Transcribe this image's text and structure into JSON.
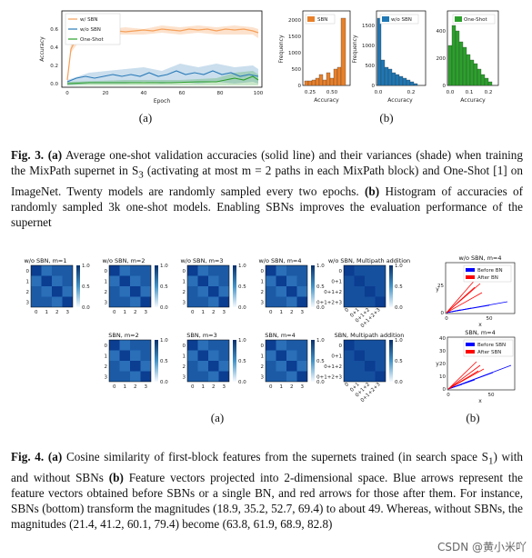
{
  "fig3": {
    "line_chart": {
      "xlabel": "Epoch",
      "ylabel": "Accuracy",
      "legend": [
        "w/ SBN",
        "w/o SBN",
        "One-Shot"
      ],
      "xticks": [
        "0",
        "20",
        "40",
        "60",
        "80",
        "100"
      ],
      "yticks": [
        "0.0",
        "0.2",
        "0.4",
        "0.6"
      ]
    },
    "hists": [
      {
        "legend": "SBN",
        "ylabel": "Frequency",
        "xlabel": "Accuracy",
        "xticks": [
          "0.25",
          "0.50"
        ],
        "yticks": [
          "0",
          "500",
          "1000",
          "1500",
          "2000"
        ]
      },
      {
        "legend": "w/o SBN",
        "ylabel": "Frequency",
        "xlabel": "Accuracy",
        "xticks": [
          "0.0",
          "0.2"
        ],
        "yticks": [
          "0",
          "500",
          "1000",
          "1500"
        ]
      },
      {
        "legend": "One-Shot",
        "ylabel": "",
        "xlabel": "Accuracy",
        "xticks": [
          "0.0",
          "0.1",
          "0.2"
        ],
        "yticks": [
          "0",
          "200",
          "400"
        ]
      }
    ],
    "sub_a": "(a)",
    "sub_b": "(b)",
    "caption_label": "Fig. 3.",
    "caption_a": "(a)",
    "caption_text1": " Average one-shot validation accuracies (solid line) and their variances (shade) when training the MixPath supernet in S",
    "caption_sub3": "3",
    "caption_text2": " (activating at most m = 2 paths in each MixPath block) and One-Shot [1] on ImageNet. Twenty models are randomly sampled every two epochs. ",
    "caption_b": "(b)",
    "caption_text3": " Histogram of accuracies of randomly sampled 3k one-shot models. Enabling SBNs improves the evaluation performance of the supernet"
  },
  "fig4": {
    "heatmaps_top": [
      {
        "title": "w/o SBN, m=1"
      },
      {
        "title": "w/o SBN, m=2"
      },
      {
        "title": "w/o SBN, m=3"
      },
      {
        "title": "w/o SBN, m=4"
      },
      {
        "title": "w/o SBN, Multipath addition"
      }
    ],
    "heatmaps_bottom": [
      {
        "title": "SBN, m=2"
      },
      {
        "title": "SBN, m=3"
      },
      {
        "title": "SBN, m=4"
      },
      {
        "title": "SBN, Multipath addition"
      }
    ],
    "idx_ticks": [
      "0",
      "1",
      "2",
      "3"
    ],
    "add_ticks": [
      "0",
      "0+1",
      "0+1+2",
      "0+1+2+3"
    ],
    "colorbar": [
      "1.0",
      "0.5",
      "0.0"
    ],
    "vec_top": {
      "title": "w/o SBN, m=4",
      "legend": [
        "Before BN",
        "After BN"
      ],
      "yticks": [
        "0",
        "25"
      ],
      "xticks": [
        "0",
        "50"
      ]
    },
    "vec_bottom": {
      "title": "SBN, m=4",
      "legend": [
        "Before SBN",
        "After SBN"
      ],
      "yticks": [
        "0",
        "10",
        "20",
        "30",
        "40"
      ],
      "xticks": [
        "0",
        "50"
      ]
    },
    "axis_x": "x",
    "axis_y": "y",
    "sub_a": "(a)",
    "sub_b": "(b)",
    "caption_label": "Fig. 4.",
    "caption_a": "(a)",
    "caption_text1": " Cosine similarity of first-block features from the supernets trained (in search space S",
    "caption_sub1": "1",
    "caption_text2": ") with and without SBNs ",
    "caption_b": "(b)",
    "caption_text3": " Feature vectors projected into 2-dimensional space. Blue arrows represent the feature vectors obtained before SBNs or a single BN, and red arrows for those after them. For instance, SBNs (bottom) transform the magnitudes (18.9, 35.2, 52.7, 69.4) to about 49. Whereas, without SBNs, the magnitudes (21.4, 41.2, 60.1, 79.4) become (63.8, 61.9, 68.9, 82.8)"
  },
  "watermark": "CSDN @黄小米吖",
  "colors": {
    "sbn": "#f5a05a",
    "wosbn": "#2b7bb9",
    "oneshot": "#2ca02c",
    "hist_sbn": "#e8802a",
    "hist_wosbn": "#1f77b4",
    "hist_one": "#2ca02c",
    "blue": "#0000ff",
    "red": "#ff0000"
  }
}
